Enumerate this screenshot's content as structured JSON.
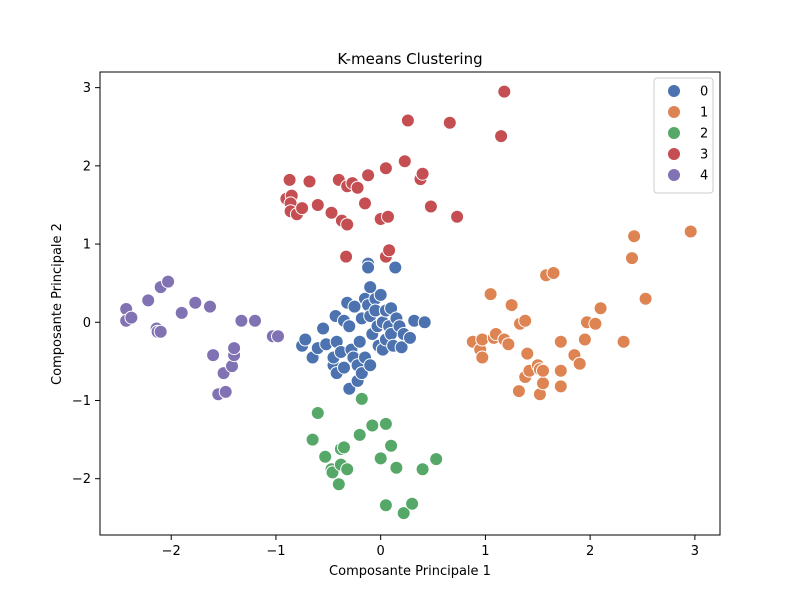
{
  "chart_data": {
    "type": "scatter",
    "title": "K-means Clustering",
    "xlabel": "Composante Principale 1",
    "ylabel": "Composante Principale 2",
    "xlim": [
      -2.68,
      3.24
    ],
    "ylim": [
      -2.72,
      3.2
    ],
    "xticks": [
      -2,
      -1,
      0,
      1,
      2,
      3
    ],
    "xtick_labels": [
      "−2",
      "−1",
      "0",
      "1",
      "2",
      "3"
    ],
    "yticks": [
      -2,
      -1,
      0,
      1,
      2,
      3
    ],
    "ytick_labels": [
      "−2",
      "−1",
      "0",
      "1",
      "2",
      "3"
    ],
    "grid": false,
    "legend": "top-right",
    "series": [
      {
        "name": "0",
        "color": "#4c72b0",
        "points": [
          [
            -0.75,
            -0.3
          ],
          [
            -0.72,
            -0.22
          ],
          [
            -0.65,
            -0.45
          ],
          [
            -0.6,
            -0.33
          ],
          [
            -0.55,
            -0.08
          ],
          [
            -0.52,
            -0.28
          ],
          [
            -0.45,
            -0.55
          ],
          [
            -0.45,
            -0.45
          ],
          [
            -0.43,
            0.08
          ],
          [
            -0.42,
            -0.25
          ],
          [
            -0.42,
            -0.65
          ],
          [
            -0.38,
            -0.38
          ],
          [
            -0.35,
            -0.58
          ],
          [
            -0.35,
            0.02
          ],
          [
            -0.32,
            0.25
          ],
          [
            -0.3,
            -0.05
          ],
          [
            -0.3,
            -0.85
          ],
          [
            -0.28,
            -0.35
          ],
          [
            -0.26,
            -0.45
          ],
          [
            -0.25,
            0.2
          ],
          [
            -0.22,
            -0.75
          ],
          [
            -0.22,
            -0.55
          ],
          [
            -0.2,
            -0.25
          ],
          [
            -0.18,
            0.05
          ],
          [
            -0.18,
            -0.65
          ],
          [
            -0.15,
            0.3
          ],
          [
            -0.15,
            -0.45
          ],
          [
            -0.12,
            0.22
          ],
          [
            -0.1,
            0.08
          ],
          [
            -0.1,
            -0.55
          ],
          [
            -0.08,
            -0.15
          ],
          [
            -0.05,
            0.3
          ],
          [
            -0.05,
            0.15
          ],
          [
            -0.03,
            -0.05
          ],
          [
            -0.02,
            -0.3
          ],
          [
            0.0,
            0.35
          ],
          [
            0.02,
            0.0
          ],
          [
            0.02,
            -0.35
          ],
          [
            0.05,
            0.15
          ],
          [
            0.05,
            -0.22
          ],
          [
            0.08,
            -0.05
          ],
          [
            0.1,
            0.18
          ],
          [
            0.1,
            -0.15
          ],
          [
            0.12,
            -0.3
          ],
          [
            0.15,
            0.05
          ],
          [
            0.18,
            -0.05
          ],
          [
            0.2,
            -0.32
          ],
          [
            0.22,
            -0.15
          ],
          [
            0.28,
            -0.2
          ],
          [
            0.32,
            0.02
          ],
          [
            0.42,
            0.0
          ],
          [
            -0.12,
            0.75
          ],
          [
            -0.12,
            0.7
          ],
          [
            0.14,
            0.7
          ],
          [
            -0.1,
            0.45
          ]
        ]
      },
      {
        "name": "1",
        "color": "#dd8452",
        "points": [
          [
            0.88,
            -0.25
          ],
          [
            0.95,
            -0.35
          ],
          [
            0.97,
            -0.45
          ],
          [
            0.97,
            -0.22
          ],
          [
            1.05,
            0.36
          ],
          [
            1.08,
            -0.2
          ],
          [
            1.1,
            -0.15
          ],
          [
            1.18,
            -0.22
          ],
          [
            1.22,
            -0.28
          ],
          [
            1.25,
            0.22
          ],
          [
            1.32,
            -0.88
          ],
          [
            1.33,
            -0.02
          ],
          [
            1.38,
            0.02
          ],
          [
            1.38,
            -0.7
          ],
          [
            1.4,
            -0.4
          ],
          [
            1.42,
            -0.62
          ],
          [
            1.5,
            -0.55
          ],
          [
            1.52,
            -0.92
          ],
          [
            1.52,
            -0.6
          ],
          [
            1.55,
            -0.78
          ],
          [
            1.55,
            -0.62
          ],
          [
            1.58,
            0.6
          ],
          [
            1.65,
            0.63
          ],
          [
            1.72,
            -0.82
          ],
          [
            1.72,
            -0.62
          ],
          [
            1.72,
            -0.25
          ],
          [
            1.85,
            -0.42
          ],
          [
            1.9,
            -0.53
          ],
          [
            1.95,
            -0.22
          ],
          [
            1.97,
            0.0
          ],
          [
            2.05,
            -0.02
          ],
          [
            2.1,
            0.18
          ],
          [
            2.32,
            -0.25
          ],
          [
            2.4,
            0.82
          ],
          [
            2.42,
            1.1
          ],
          [
            2.53,
            0.3
          ],
          [
            2.96,
            1.16
          ]
        ]
      },
      {
        "name": "2",
        "color": "#55a868",
        "points": [
          [
            -0.6,
            -1.16
          ],
          [
            -0.65,
            -1.5
          ],
          [
            -0.53,
            -1.72
          ],
          [
            -0.47,
            -1.88
          ],
          [
            -0.46,
            -1.92
          ],
          [
            -0.4,
            -2.07
          ],
          [
            -0.38,
            -1.62
          ],
          [
            -0.35,
            -1.6
          ],
          [
            -0.38,
            -1.82
          ],
          [
            -0.32,
            -1.88
          ],
          [
            -0.2,
            -1.44
          ],
          [
            -0.18,
            -0.98
          ],
          [
            -0.08,
            -1.32
          ],
          [
            0.0,
            -1.74
          ],
          [
            0.05,
            -1.3
          ],
          [
            0.05,
            -2.34
          ],
          [
            0.1,
            -1.58
          ],
          [
            0.15,
            -1.86
          ],
          [
            0.22,
            -2.44
          ],
          [
            0.3,
            -2.32
          ],
          [
            0.4,
            -1.88
          ],
          [
            0.53,
            -1.75
          ]
        ]
      },
      {
        "name": "3",
        "color": "#c44e52",
        "points": [
          [
            -0.9,
            1.58
          ],
          [
            -0.87,
            1.82
          ],
          [
            -0.85,
            1.62
          ],
          [
            -0.86,
            1.52
          ],
          [
            -0.86,
            1.42
          ],
          [
            -0.8,
            1.38
          ],
          [
            -0.75,
            1.46
          ],
          [
            -0.68,
            1.8
          ],
          [
            -0.6,
            1.5
          ],
          [
            -0.47,
            1.4
          ],
          [
            -0.4,
            1.82
          ],
          [
            -0.37,
            1.3
          ],
          [
            -0.32,
            1.25
          ],
          [
            -0.32,
            1.74
          ],
          [
            -0.27,
            1.78
          ],
          [
            -0.22,
            1.72
          ],
          [
            -0.15,
            1.52
          ],
          [
            -0.12,
            1.88
          ],
          [
            -0.33,
            0.84
          ],
          [
            0.0,
            1.32
          ],
          [
            0.05,
            1.97
          ],
          [
            0.07,
            1.35
          ],
          [
            0.05,
            0.84
          ],
          [
            0.08,
            0.92
          ],
          [
            0.23,
            2.06
          ],
          [
            0.26,
            2.58
          ],
          [
            0.38,
            1.83
          ],
          [
            0.4,
            1.9
          ],
          [
            0.48,
            1.48
          ],
          [
            0.66,
            2.55
          ],
          [
            0.73,
            1.35
          ],
          [
            1.15,
            2.38
          ],
          [
            1.18,
            2.95
          ]
        ]
      },
      {
        "name": "4",
        "color": "#8172b3",
        "points": [
          [
            -2.43,
            0.17
          ],
          [
            -2.43,
            0.02
          ],
          [
            -2.38,
            0.06
          ],
          [
            -2.22,
            0.28
          ],
          [
            -2.14,
            -0.08
          ],
          [
            -2.13,
            -0.12
          ],
          [
            -2.1,
            -0.12
          ],
          [
            -2.1,
            0.45
          ],
          [
            -2.03,
            0.52
          ],
          [
            -1.9,
            0.12
          ],
          [
            -1.77,
            0.25
          ],
          [
            -1.63,
            0.2
          ],
          [
            -1.6,
            -0.42
          ],
          [
            -1.55,
            -0.92
          ],
          [
            -1.5,
            -0.65
          ],
          [
            -1.48,
            -0.89
          ],
          [
            -1.42,
            -0.56
          ],
          [
            -1.4,
            -0.42
          ],
          [
            -1.4,
            -0.33
          ],
          [
            -1.33,
            0.02
          ],
          [
            -1.2,
            0.02
          ],
          [
            -1.03,
            -0.18
          ],
          [
            -0.98,
            -0.18
          ]
        ]
      }
    ]
  }
}
